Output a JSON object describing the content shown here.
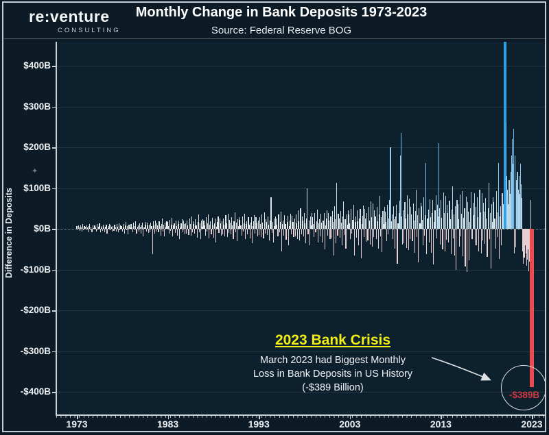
{
  "header": {
    "logo_line1": "re:venture",
    "logo_line2": "CONSULTING",
    "title": "Monthly Change in Bank Deposits 1973-2023",
    "subtitle": "Source: Federal Reserve BOG"
  },
  "annotation": {
    "heading": "2023 Bank Crisis",
    "line1": "March 2023 had Biggest Monthly",
    "line2": "Loss in Bank Deposits in US History",
    "line3": "(-$389 Billion)",
    "callout_value": "-$389B"
  },
  "colors": {
    "background": "#0c1b26",
    "plot_background": "#0d202d",
    "frame": "#c6cdd2",
    "accent_yellow": "#f3ef15",
    "crisis_red": "#ea4b50",
    "callout_red": "#d03a41",
    "positive_base": "#e6eae9",
    "highlight_blue": "#4fadea",
    "peak_blue": "#2da0e8",
    "negative_pink": "#eacfd2"
  },
  "chart_data": {
    "type": "bar",
    "title": "Monthly Change in Bank Deposits 1973-2023",
    "ylabel": "Difference in Deposits",
    "unit": "billions of US dollars",
    "x_start": "1973-01",
    "x_end": "2023-03",
    "x_tick_labels": [
      "1973",
      "1983",
      "1993",
      "2003",
      "2013",
      "2023"
    ],
    "y_tick_values": [
      400,
      300,
      200,
      100,
      0,
      -100,
      -200,
      -300,
      -400
    ],
    "y_tick_labels": [
      "$400B",
      "$300B",
      "$200B",
      "$100B",
      "$0B",
      "-$100B",
      "-$200B",
      "-$300B",
      "-$400B"
    ],
    "ylim": [
      -460,
      460
    ],
    "grid": true,
    "notes": "Apr 2020 spike clipped at top of axis; Mar 2023 = -389 (biggest monthly loss in US history)",
    "series_name": "Monthly change in deposits ($B)",
    "monthly_values": [
      6,
      -4,
      8,
      3,
      -5,
      9,
      4,
      -6,
      11,
      -3,
      7,
      5,
      -4,
      9,
      3,
      -8,
      6,
      12,
      -3,
      5,
      -9,
      8,
      2,
      9,
      8,
      3,
      -6,
      11,
      -2,
      5,
      13,
      -9,
      4,
      7,
      -5,
      10,
      4,
      -8,
      5,
      10,
      -12,
      2,
      7,
      12,
      -4,
      10,
      5,
      -7,
      7,
      -5,
      10,
      4,
      -7,
      12,
      5,
      -8,
      14,
      -4,
      9,
      6,
      -6,
      12,
      4,
      -11,
      8,
      17,
      -4,
      7,
      -13,
      10,
      3,
      12,
      11,
      4,
      -8,
      15,
      -3,
      7,
      18,
      -12,
      5,
      9,
      -7,
      14,
      5,
      -12,
      8,
      15,
      -19,
      3,
      10,
      17,
      -6,
      15,
      8,
      -10,
      10,
      -8,
      15,
      6,
      -62,
      18,
      8,
      -12,
      21,
      -6,
      13,
      9,
      -9,
      18,
      6,
      -16,
      12,
      26,
      -6,
      10,
      -19,
      15,
      4,
      18,
      16,
      6,
      -12,
      22,
      -5,
      10,
      27,
      -18,
      8,
      14,
      -10,
      21,
      7,
      -17,
      11,
      21,
      -26,
      4,
      14,
      24,
      -8,
      21,
      11,
      -14,
      14,
      -11,
      21,
      8,
      -15,
      26,
      11,
      -17,
      30,
      -8,
      18,
      12,
      -12,
      24,
      8,
      -22,
      16,
      35,
      -8,
      13,
      -26,
      20,
      5,
      24,
      21,
      8,
      -16,
      29,
      -7,
      13,
      35,
      -24,
      10,
      18,
      -13,
      27,
      9,
      -22,
      14,
      26,
      -33,
      5,
      17,
      30,
      -10,
      26,
      14,
      -17,
      18,
      -14,
      26,
      10,
      -19,
      33,
      14,
      -21,
      37,
      -10,
      22,
      15,
      -14,
      28,
      9,
      -26,
      19,
      41,
      -9,
      15,
      -30,
      23,
      6,
      28,
      22,
      9,
      -17,
      31,
      -7,
      14,
      37,
      -26,
      11,
      19,
      -14,
      29,
      10,
      -24,
      15,
      28,
      -36,
      6,
      19,
      33,
      -11,
      28,
      15,
      -19,
      20,
      -15,
      28,
      11,
      -21,
      36,
      15,
      -23,
      41,
      -11,
      24,
      16,
      -15,
      30,
      10,
      -28,
      21,
      77,
      -10,
      16,
      -33,
      25,
      7,
      31,
      25,
      10,
      -19,
      35,
      -8,
      16,
      42,
      -56,
      12,
      21,
      -16,
      33,
      12,
      -27,
      17,
      32,
      -41,
      7,
      21,
      37,
      -13,
      32,
      17,
      -21,
      25,
      -19,
      35,
      14,
      -26,
      45,
      19,
      -29,
      51,
      -14,
      30,
      20,
      -19,
      38,
      13,
      -35,
      26,
      100,
      -13,
      20,
      -41,
      31,
      9,
      39,
      28,
      11,
      -21,
      39,
      -9,
      18,
      47,
      -33,
      13,
      24,
      -18,
      37,
      15,
      -33,
      21,
      39,
      -50,
      9,
      26,
      46,
      -16,
      39,
      21,
      -26,
      31,
      -24,
      44,
      17,
      -66,
      56,
      24,
      -36,
      112,
      -17,
      37,
      25,
      -22,
      44,
      15,
      -41,
      30,
      67,
      -15,
      23,
      -48,
      36,
      10,
      45,
      35,
      14,
      -26,
      49,
      -11,
      22,
      59,
      -66,
      16,
      30,
      -22,
      46,
      19,
      -41,
      26,
      49,
      -72,
      11,
      32,
      57,
      -20,
      49,
      26,
      -32,
      38,
      -29,
      54,
      21,
      -39,
      68,
      29,
      -43,
      62,
      -21,
      45,
      30,
      -26,
      53,
      18,
      -49,
      36,
      80,
      -18,
      28,
      -57,
      43,
      12,
      54,
      42,
      17,
      -31,
      59,
      -13,
      26,
      71,
      200,
      19,
      36,
      -26,
      55,
      23,
      -49,
      31,
      59,
      -86,
      13,
      38,
      69,
      180,
      235,
      31,
      -38,
      46,
      -35,
      65,
      25,
      -47,
      82,
      35,
      -52,
      74,
      -25,
      54,
      36,
      -31,
      63,
      21,
      -58,
      43,
      95,
      -21,
      33,
      -82,
      51,
      14,
      64,
      55,
      22,
      -40,
      77,
      -17,
      34,
      162,
      -62,
      25,
      47,
      -34,
      72,
      28,
      -59,
      38,
      71,
      -88,
      16,
      46,
      83,
      -24,
      59,
      31,
      210,
      50,
      -38,
      71,
      27,
      -51,
      89,
      38,
      -56,
      81,
      -27,
      59,
      39,
      -34,
      69,
      23,
      -63,
      47,
      104,
      -23,
      36,
      -66,
      56,
      -100,
      70,
      60,
      24,
      -44,
      84,
      -18,
      37,
      92,
      -68,
      27,
      51,
      -92,
      79,
      -106,
      65,
      42,
      -77,
      17,
      50,
      91,
      -26,
      64,
      34,
      88,
      -41,
      54,
      -41,
      77,
      29,
      -55,
      96,
      41,
      -61,
      88,
      -29,
      64,
      42,
      -37,
      75,
      25,
      -69,
      51,
      113,
      -25,
      39,
      -98,
      61,
      17,
      77,
      66,
      26,
      -48,
      92,
      -20,
      41,
      162,
      -74,
      30,
      56,
      -41,
      87,
      60,
      85,
      450,
      900,
      260,
      130,
      95,
      60,
      120,
      85,
      140,
      180,
      220,
      160,
      245,
      -60,
      180,
      -45,
      120,
      140,
      95,
      130,
      85,
      160,
      110,
      75,
      -55,
      -85,
      -70,
      -40,
      -60,
      -90,
      -75,
      -50,
      -105,
      -80,
      -110,
      70,
      -389
    ],
    "highlights": {
      "apr_2020": ">450 (clipped by axis)",
      "mar_2023": -389
    }
  }
}
